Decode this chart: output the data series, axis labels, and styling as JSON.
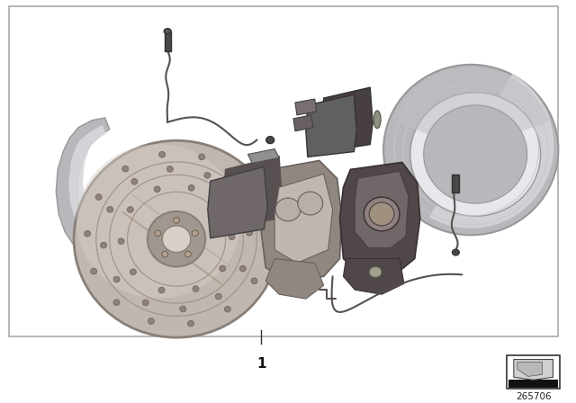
{
  "bg": "#ffffff",
  "border_color": "#aaaaaa",
  "part_number": "265706",
  "label_number": "1",
  "fig_width": 6.4,
  "fig_height": 4.48,
  "dpi": 100,
  "colors": {
    "disc_face": "#c0b8b0",
    "disc_edge": "#888078",
    "disc_hub": "#a09890",
    "disc_center": "#d8d0c8",
    "disc_hole": "#706860",
    "shield_light": "#d8d8dc",
    "shield_mid": "#b8b8bc",
    "shield_dark": "#989898",
    "caliper_light": "#c0b8b0",
    "caliper_mid": "#908880",
    "caliper_dark": "#686060",
    "pad_dark": "#585050",
    "pad_mid": "#706868",
    "wire_color": "#585050",
    "rear_plate_light": "#d0d0d4",
    "rear_plate_mid": "#b0b0b4",
    "rear_plate_dark": "#909094",
    "rear_caliper_dark": "#504848",
    "rear_caliper_mid": "#706868"
  }
}
